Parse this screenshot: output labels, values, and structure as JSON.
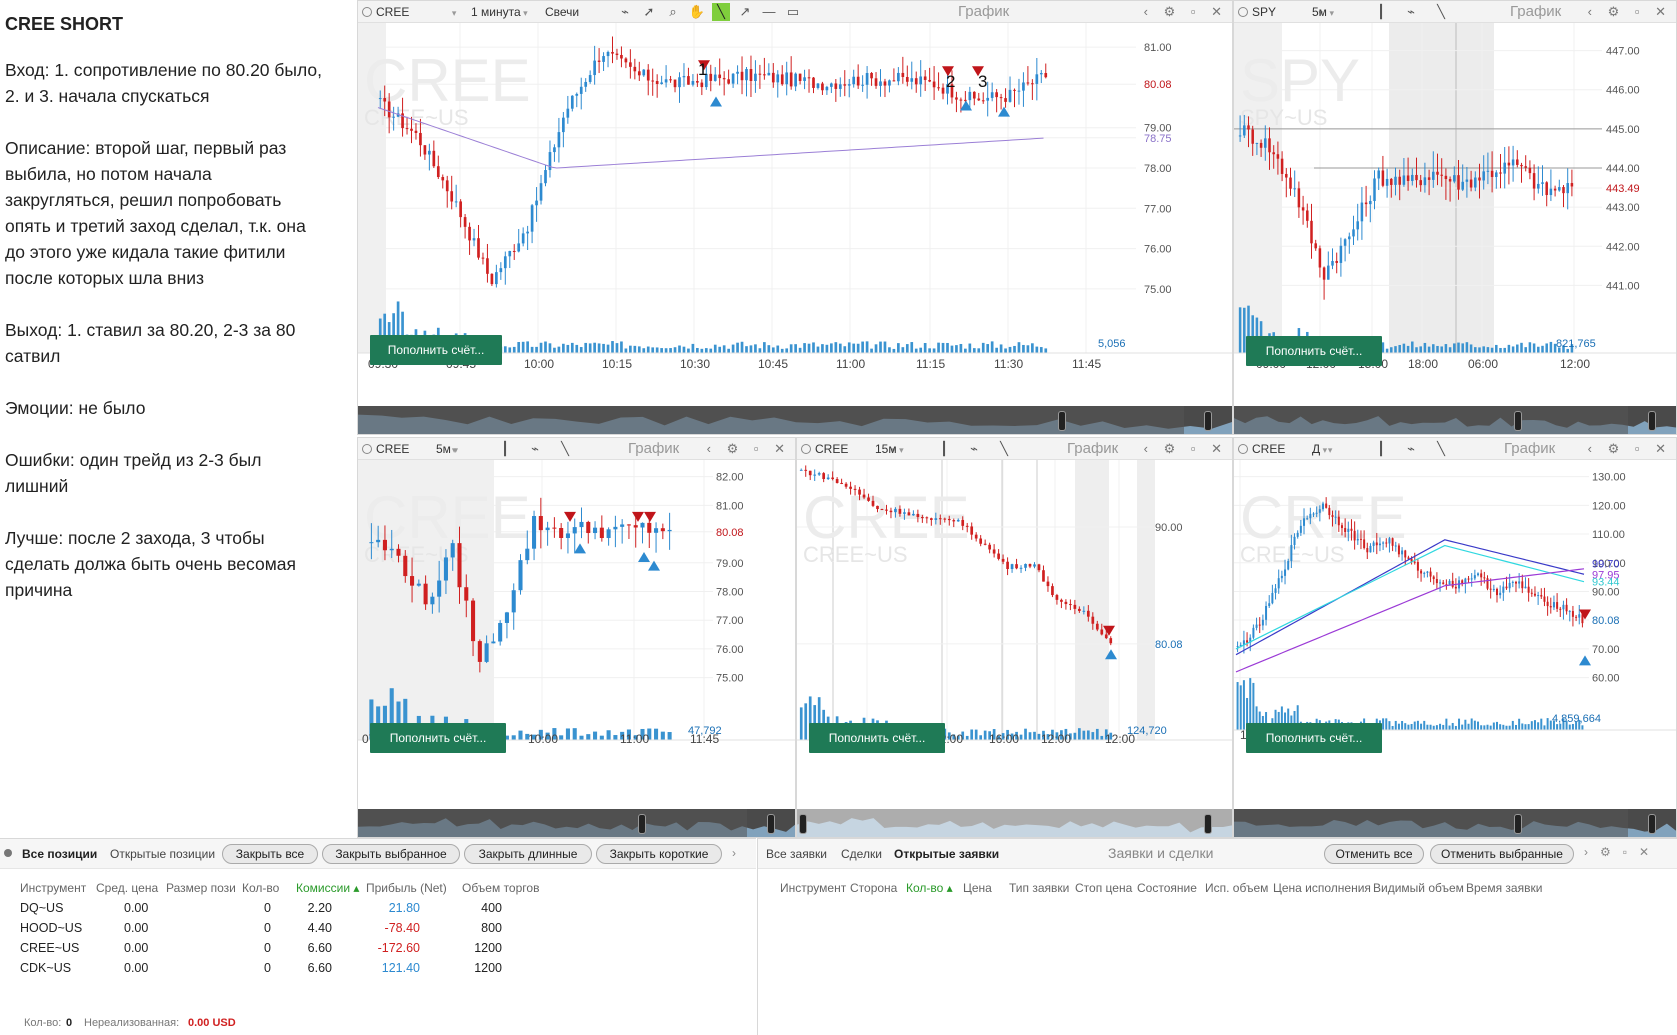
{
  "notes": {
    "title": "CREE SHORT",
    "entry": "Вход: 1. сопротивление по 80.20 было,\n2. и 3. начала спускаться",
    "description": "Описание: второй шаг, первый раз\nвыбила, но потом начала\nзакругляться, решил попробовать\nопять и третий заход сделал, т.к. она\nдо этого уже кидала такие фитили\nпосле которых шла вниз",
    "exit": "Выход: 1. ставил за 80.20, 2-3 за 80\nсатвил",
    "emotions": "Эмоции: не было",
    "mistakes": "Ошибки: один трейд из 2-3 был\nлишний",
    "better": "Лучше: после 2 захода, 3 чтобы\nсделать должа быть очень весомая\nпричина"
  },
  "common": {
    "graph_title": "График",
    "deposit_button": "Пополнить счёт...",
    "controls": "‹ ⚙ ▫ ✕"
  },
  "charts": [
    {
      "id": "c1",
      "symbol": "CREE",
      "timeframe": "1 минута",
      "chart_kind": "Свечи",
      "watermark": "CREE",
      "watermark_sub": "CREE~US",
      "price_axis": [
        "81.00",
        "80.08",
        "79.00",
        "78.75",
        "78.00",
        "77.00",
        "76.00",
        "75.00"
      ],
      "last_price": "80.08",
      "ma_price": "78.75",
      "time_axis": [
        "09:30",
        "09:45",
        "10:00",
        "10:15",
        "10:30",
        "10:45",
        "11:00",
        "11:15",
        "11:30",
        "11:45"
      ],
      "volume_label": "5,056",
      "markers": [
        "1",
        "2",
        "3"
      ]
    },
    {
      "id": "c2",
      "symbol": "SPY",
      "timeframe": "5м",
      "watermark": "SPY",
      "watermark_sub": "SPY~US",
      "price_axis": [
        "447.00",
        "446.00",
        "445.00",
        "444.00",
        "443.49",
        "443.00",
        "442.00",
        "441.00"
      ],
      "last_price": "443.49",
      "time_axis": [
        "09:00",
        "12:00",
        "15:00",
        "18:00",
        "06:00",
        "12:00"
      ],
      "volume_label": "821,765"
    },
    {
      "id": "c3",
      "symbol": "CREE",
      "timeframe": "5м",
      "watermark": "CREE",
      "watermark_sub": "CREE~US",
      "price_axis": [
        "82.00",
        "81.00",
        "80.08",
        "79.00",
        "78.00",
        "77.00",
        "76.00",
        "75.00"
      ],
      "last_price": "80.08",
      "time_axis": [
        "07:00",
        "09:00",
        "10:00",
        "11:00",
        "11:45"
      ],
      "volume_label": "47,792"
    },
    {
      "id": "c4",
      "symbol": "CREE",
      "timeframe": "15м",
      "watermark": "CREE",
      "watermark_sub": "CREE~US",
      "price_axis": [
        "90.00",
        "80.08"
      ],
      "last_price": "80.08",
      "time_axis": [
        "00:00",
        "12:00",
        "16:00",
        "12:00",
        "12:00"
      ],
      "volume_label": "124,720"
    },
    {
      "id": "c5",
      "symbol": "CREE",
      "timeframe": "Д",
      "watermark": "CREE",
      "watermark_sub": "CREE~US",
      "price_axis": [
        "130.00",
        "120.00",
        "110.00",
        "100.00",
        "90.00",
        "80.08",
        "70.00",
        "60.00"
      ],
      "ma_labels": [
        "99.70",
        "97.95",
        "93.44"
      ],
      "last_price": "80.08",
      "time_axis": [
        "10 Nov"
      ],
      "volume_label": "4,859,664"
    }
  ],
  "positions": {
    "tabs": [
      "Все позиции",
      "Открытые позиции"
    ],
    "buttons": [
      "Закрыть все",
      "Закрыть выбранное",
      "Закрыть длинные",
      "Закрыть короткие"
    ],
    "columns": [
      "Инструмент",
      "Сред. цена",
      "Размер пози",
      "Кол-во",
      "Комиссии ▴",
      "Прибыль (Net)",
      "Объем торгов"
    ],
    "rows": [
      {
        "instrument": "DQ~US",
        "avg": "0.00",
        "qty": "0",
        "commission": "2.20",
        "profit": "21.80",
        "volume": "400"
      },
      {
        "instrument": "HOOD~US",
        "avg": "0.00",
        "qty": "0",
        "commission": "4.40",
        "profit": "-78.40",
        "volume": "800"
      },
      {
        "instrument": "CREE~US",
        "avg": "0.00",
        "qty": "0",
        "commission": "6.60",
        "profit": "-172.60",
        "volume": "1200"
      },
      {
        "instrument": "CDK~US",
        "avg": "0.00",
        "qty": "0",
        "commission": "6.60",
        "profit": "121.40",
        "volume": "1200"
      }
    ],
    "footer_qty_label": "Кол-во:",
    "footer_qty": "0",
    "footer_unreal_label": "Нереализованная:",
    "footer_unreal": "0.00 USD"
  },
  "orders": {
    "tabs": [
      "Все заявки",
      "Сделки",
      "Открытые заявки"
    ],
    "title": "Заявки и сделки",
    "buttons": [
      "Отменить все",
      "Отменить выбранные"
    ],
    "columns": [
      "Инструмент",
      "Сторона",
      "Кол-во ▴",
      "Цена",
      "Тип заявки",
      "Стоп цена",
      "Состояние",
      "Исп. объем",
      "Цена исполнения",
      "Видимый объем",
      "Время заявки"
    ]
  },
  "colors": {
    "up": "#2d8ad0",
    "down": "#d02020",
    "ma1": "#9b7fd6",
    "button": "#1f7a56"
  }
}
